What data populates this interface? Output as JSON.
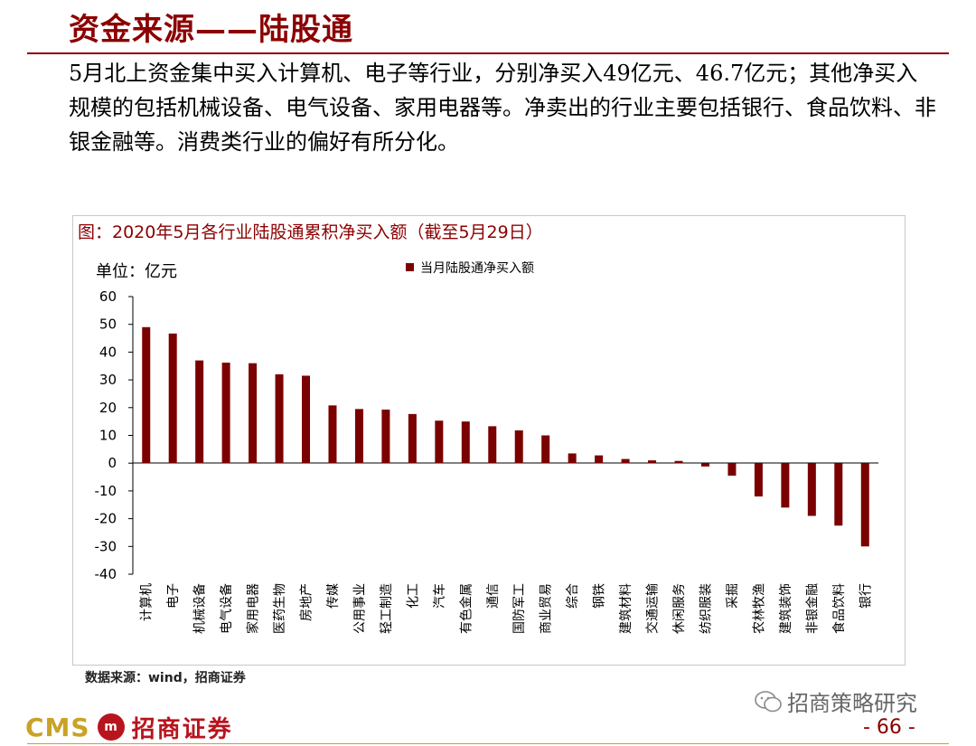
{
  "page": {
    "title": "资金来源——陆股通",
    "body": "5月北上资金集中买入计算机、电子等行业，分别净买入49亿元、46.7亿元；其他净买入规模的包括机械设备、电气设备、家用电器等。净卖出的行业主要包括银行、食品饮料、非银金融等。消费类行业的偏好有所分化。",
    "page_number": "- 66 -"
  },
  "figure": {
    "caption": "图：2020年5月各行业陆股通累积净买入额（截至5月29日）",
    "unit_label": "单位：亿元",
    "source": "数据来源：wind，招商证券"
  },
  "footer": {
    "brand_en": "CMS",
    "brand_mark": "m",
    "brand_cn": "招商证券",
    "wechat_label": "招商策略研究"
  },
  "colors": {
    "accent": "#8b0000",
    "bar": "#7b0000",
    "brand_gold": "#c9a227",
    "brand_red": "#b8141e"
  },
  "chart_data": {
    "type": "bar",
    "title": "",
    "xlabel": "",
    "ylabel": "单位：亿元",
    "ylim": [
      -40,
      60
    ],
    "yticks": [
      60,
      50,
      40,
      30,
      20,
      10,
      0,
      -10,
      -20,
      -30,
      -40
    ],
    "grid": false,
    "legend": "top-center",
    "categories": [
      "计算机",
      "电子",
      "机械设备",
      "电气设备",
      "家用电器",
      "医药生物",
      "房地产",
      "传媒",
      "公用事业",
      "轻工制造",
      "化工",
      "汽车",
      "有色金属",
      "通信",
      "国防军工",
      "商业贸易",
      "综合",
      "钢铁",
      "建筑材料",
      "交通运输",
      "休闲服务",
      "纺织服装",
      "采掘",
      "农林牧渔",
      "建筑装饰",
      "非银金融",
      "食品饮料",
      "银行"
    ],
    "series": [
      {
        "name": "当月陆股通净买入额",
        "values": [
          49,
          46.7,
          37,
          36.2,
          36,
          32,
          31.5,
          20.8,
          19.5,
          19.3,
          17.7,
          15.3,
          15,
          13.3,
          11.8,
          10,
          3.5,
          2.8,
          1.5,
          1,
          0.8,
          -1.2,
          -4.5,
          -12,
          -16,
          -19,
          -22.5,
          -30
        ]
      }
    ]
  }
}
